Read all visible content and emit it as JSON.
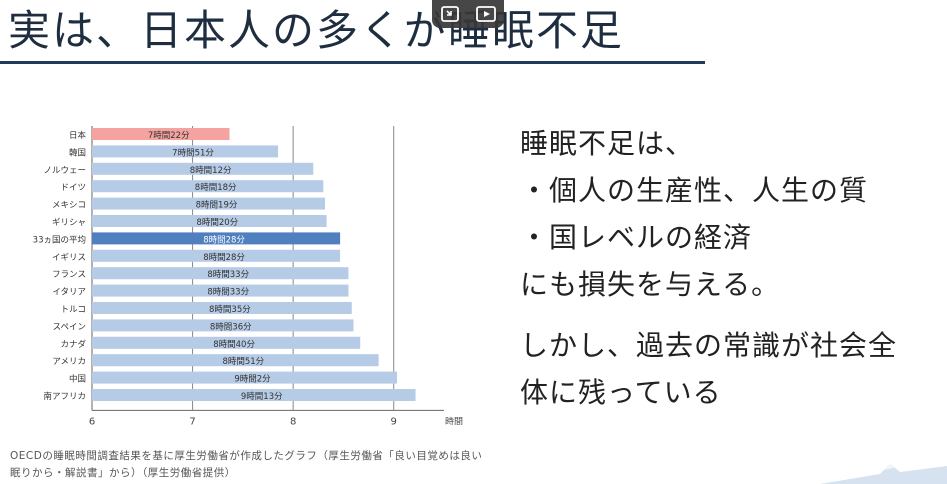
{
  "title": "実は、日本人の多くが睡眠不足",
  "video_controls": {
    "icons": [
      "exit-fullscreen-icon",
      "pip-icon"
    ]
  },
  "chart_data": {
    "type": "bar",
    "orientation": "horizontal",
    "categories": [
      "日本",
      "韓国",
      "ノルウェー",
      "ドイツ",
      "メキシコ",
      "ギリシャ",
      "33ヵ国の平均",
      "イギリス",
      "フランス",
      "イタリア",
      "トルコ",
      "スペイン",
      "カナダ",
      "アメリカ",
      "中国",
      "南アフリカ"
    ],
    "values": [
      7.367,
      7.85,
      8.2,
      8.3,
      8.317,
      8.333,
      8.467,
      8.467,
      8.55,
      8.55,
      8.583,
      8.6,
      8.667,
      8.85,
      9.033,
      9.217
    ],
    "labels": [
      "7時間22分",
      "7時間51分",
      "8時間12分",
      "8時間18分",
      "8時間19分",
      "8時間20分",
      "8時間28分",
      "8時間28分",
      "8時間33分",
      "8時間33分",
      "8時間35分",
      "8時間36分",
      "8時間40分",
      "8時間51分",
      "9時間2分",
      "9時間13分"
    ],
    "highlight": {
      "日本": "#f4a3a1",
      "33ヵ国の平均": "#4f7fbf"
    },
    "bar_color": "#b6cbe6",
    "xlim": [
      6,
      9.5
    ],
    "xticks": [
      "6",
      "7",
      "8",
      "9"
    ],
    "xunit": "時間",
    "grid": true
  },
  "caption": "OECDの睡眠時間調査結果を基に厚生労働省が作成したグラフ（厚生労働省「良い目覚めは良い眠りから・解説書」から）（厚生労働省提供）",
  "body": {
    "lines": [
      "睡眠不足は、",
      "・個人の生産性、人生の質",
      "・国レベルの経済",
      "にも損失を与える。",
      "",
      "しかし、過去の常識が社会全",
      "体に残っている"
    ]
  },
  "colors": {
    "title": "#1e2d40",
    "rule": "#1e3a5c",
    "axis": "#555555"
  }
}
